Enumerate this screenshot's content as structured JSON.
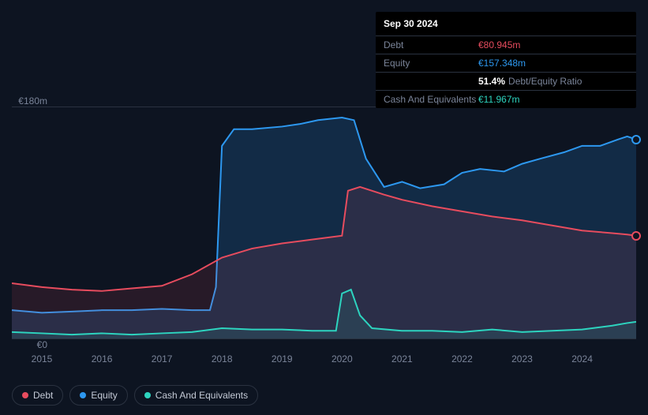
{
  "tooltip": {
    "date": "Sep 30 2024",
    "rows": [
      {
        "label": "Debt",
        "value": "€80.945m",
        "color": "#e74c5e"
      },
      {
        "label": "Equity",
        "value": "€157.348m",
        "color": "#2d98f0"
      },
      {
        "label": "",
        "ratio_value": "51.4%",
        "ratio_label": "Debt/Equity Ratio"
      },
      {
        "label": "Cash And Equivalents",
        "value": "€11.967m",
        "color": "#2dd4bf"
      }
    ]
  },
  "chart": {
    "y_max_label": "€180m",
    "y_min_label": "€0",
    "y_max": 180,
    "y_min": 0,
    "x_start": 2014.5,
    "x_end": 2024.9,
    "x_ticks": [
      "2015",
      "2016",
      "2017",
      "2018",
      "2019",
      "2020",
      "2021",
      "2022",
      "2023",
      "2024"
    ],
    "background_color": "#0d1421",
    "grid_color": "#2a3240",
    "label_color": "#7a8499",
    "label_fontsize": 12,
    "series": {
      "equity": {
        "color": "#2d98f0",
        "fill_opacity": 0.18,
        "line_width": 2,
        "points": [
          [
            2014.5,
            22
          ],
          [
            2015,
            20
          ],
          [
            2015.5,
            21
          ],
          [
            2016,
            22
          ],
          [
            2016.5,
            22
          ],
          [
            2017,
            23
          ],
          [
            2017.5,
            22
          ],
          [
            2017.8,
            22
          ],
          [
            2017.9,
            40
          ],
          [
            2018.0,
            150
          ],
          [
            2018.2,
            163
          ],
          [
            2018.5,
            163
          ],
          [
            2019,
            165
          ],
          [
            2019.3,
            167
          ],
          [
            2019.6,
            170
          ],
          [
            2020,
            172
          ],
          [
            2020.2,
            170
          ],
          [
            2020.4,
            140
          ],
          [
            2020.7,
            118
          ],
          [
            2021,
            122
          ],
          [
            2021.3,
            117
          ],
          [
            2021.7,
            120
          ],
          [
            2022,
            129
          ],
          [
            2022.3,
            132
          ],
          [
            2022.7,
            130
          ],
          [
            2023,
            136
          ],
          [
            2023.3,
            140
          ],
          [
            2023.7,
            145
          ],
          [
            2024,
            150
          ],
          [
            2024.3,
            150
          ],
          [
            2024.6,
            155
          ],
          [
            2024.75,
            157.3
          ],
          [
            2024.9,
            155
          ]
        ]
      },
      "debt": {
        "color": "#e74c5e",
        "fill_opacity": 0.12,
        "line_width": 2,
        "points": [
          [
            2014.5,
            43
          ],
          [
            2015,
            40
          ],
          [
            2015.5,
            38
          ],
          [
            2016,
            37
          ],
          [
            2016.5,
            39
          ],
          [
            2017,
            41
          ],
          [
            2017.5,
            50
          ],
          [
            2018,
            63
          ],
          [
            2018.5,
            70
          ],
          [
            2019,
            74
          ],
          [
            2019.5,
            77
          ],
          [
            2020,
            80
          ],
          [
            2020.1,
            115
          ],
          [
            2020.3,
            118
          ],
          [
            2020.7,
            112
          ],
          [
            2021,
            108
          ],
          [
            2021.5,
            103
          ],
          [
            2022,
            99
          ],
          [
            2022.5,
            95
          ],
          [
            2023,
            92
          ],
          [
            2023.5,
            88
          ],
          [
            2024,
            84
          ],
          [
            2024.5,
            82
          ],
          [
            2024.75,
            80.9
          ],
          [
            2024.9,
            80
          ]
        ]
      },
      "cash": {
        "color": "#2dd4bf",
        "fill_opacity": 0.1,
        "line_width": 2,
        "points": [
          [
            2014.5,
            5
          ],
          [
            2015,
            4
          ],
          [
            2015.5,
            3
          ],
          [
            2016,
            4
          ],
          [
            2016.5,
            3
          ],
          [
            2017,
            4
          ],
          [
            2017.5,
            5
          ],
          [
            2018,
            8
          ],
          [
            2018.5,
            7
          ],
          [
            2019,
            7
          ],
          [
            2019.5,
            6
          ],
          [
            2019.9,
            6
          ],
          [
            2020.0,
            35
          ],
          [
            2020.15,
            38
          ],
          [
            2020.3,
            18
          ],
          [
            2020.5,
            8
          ],
          [
            2021,
            6
          ],
          [
            2021.5,
            6
          ],
          [
            2022,
            5
          ],
          [
            2022.5,
            7
          ],
          [
            2023,
            5
          ],
          [
            2023.5,
            6
          ],
          [
            2024,
            7
          ],
          [
            2024.5,
            10
          ],
          [
            2024.75,
            12
          ],
          [
            2024.9,
            13
          ]
        ]
      }
    },
    "markers": [
      {
        "series": "equity",
        "x": 2024.9,
        "y": 155
      },
      {
        "series": "debt",
        "x": 2024.9,
        "y": 80
      }
    ]
  },
  "legend": [
    {
      "label": "Debt",
      "color": "#e74c5e"
    },
    {
      "label": "Equity",
      "color": "#2d98f0"
    },
    {
      "label": "Cash And Equivalents",
      "color": "#2dd4bf"
    }
  ]
}
